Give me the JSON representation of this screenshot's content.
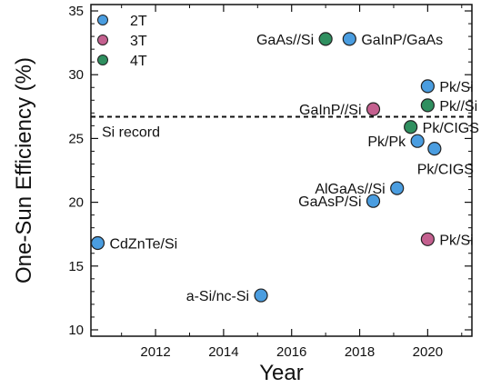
{
  "chart_data": {
    "type": "scatter",
    "xlabel": "Year",
    "ylabel": "One-Sun Efficiency (%)",
    "xlim": [
      2010.1,
      2021.3
    ],
    "ylim": [
      9.5,
      35.5
    ],
    "xticks": [
      2012,
      2014,
      2016,
      2018,
      2020
    ],
    "yticks": [
      10,
      15,
      20,
      25,
      30,
      35
    ],
    "legend_position": "top-left",
    "series": [
      {
        "name": "2T",
        "color": "#4a9de0",
        "points": [
          {
            "x": 2010.3,
            "y": 16.8,
            "label": "CdZnTe/Si",
            "label_side": "right"
          },
          {
            "x": 2015.1,
            "y": 12.7,
            "label": "a-Si/nc-Si",
            "label_side": "left"
          },
          {
            "x": 2017.7,
            "y": 32.8,
            "label": "GaInP/GaAs",
            "label_side": "right"
          },
          {
            "x": 2018.4,
            "y": 20.1,
            "label": "GaAsP/Si",
            "label_side": "left"
          },
          {
            "x": 2019.1,
            "y": 21.1,
            "label": "AlGaAs//Si",
            "label_side": "left"
          },
          {
            "x": 2019.7,
            "y": 24.8,
            "label": "Pk/Pk",
            "label_side": "left"
          },
          {
            "x": 2020.0,
            "y": 29.1,
            "label": "Pk/Si",
            "label_side": "right"
          },
          {
            "x": 2020.2,
            "y": 24.2,
            "label": "Pk/CIGS",
            "label_side": "below"
          }
        ]
      },
      {
        "name": "3T",
        "color": "#c4608f",
        "points": [
          {
            "x": 2018.4,
            "y": 27.3,
            "label": "GaInP//Si",
            "label_side": "left"
          },
          {
            "x": 2020.0,
            "y": 17.1,
            "label": "Pk/Si",
            "label_side": "right"
          }
        ]
      },
      {
        "name": "4T",
        "color": "#2f8f5f",
        "points": [
          {
            "x": 2017.0,
            "y": 32.8,
            "label": "GaAs//Si",
            "label_side": "left"
          },
          {
            "x": 2019.5,
            "y": 25.9,
            "label": "Pk/CIGS",
            "label_side": "right"
          },
          {
            "x": 2020.0,
            "y": 27.6,
            "label": "Pk//Si",
            "label_side": "right"
          }
        ]
      }
    ],
    "reference_lines": [
      {
        "y": 26.7,
        "label": "Si record",
        "style": "dashed"
      }
    ]
  }
}
